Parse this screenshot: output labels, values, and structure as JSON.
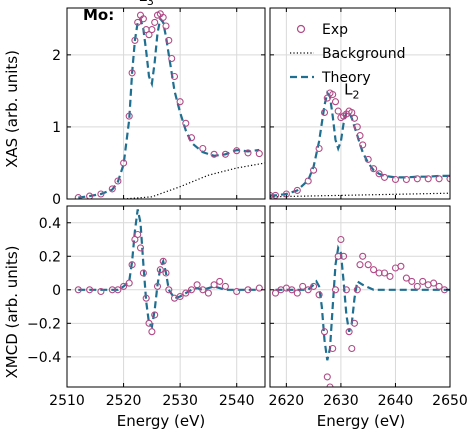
{
  "chart_data": {
    "type": "scatter",
    "element_label": "Mo:",
    "legend": {
      "position": "top-right",
      "entries": [
        {
          "name": "Exp",
          "style": "open-circle",
          "color": "#b04a86"
        },
        {
          "name": "Background",
          "style": "dotted",
          "color": "#000000"
        },
        {
          "name": "Theory",
          "style": "dashed",
          "color": "#1f6f91"
        }
      ]
    },
    "xlabel": "Energy (eV)",
    "grid": true,
    "panels": [
      {
        "id": "xas_l3",
        "ylabel": "XAS (arb. units)",
        "xlim": [
          2510,
          2545
        ],
        "ylim": [
          0,
          2.65
        ],
        "yticks": [
          0,
          1,
          2
        ],
        "xticks": [
          2510,
          2520,
          2530,
          2540
        ],
        "edge_label": {
          "text": "L",
          "sub": "3",
          "x": 2524,
          "y": 2.75
        },
        "exp": {
          "x": [
            2512,
            2514,
            2516,
            2518,
            2519,
            2520,
            2521,
            2521.5,
            2522,
            2522.5,
            2523,
            2523.5,
            2524,
            2524.5,
            2525,
            2525.5,
            2526,
            2526.5,
            2527,
            2527.5,
            2528,
            2528.5,
            2529,
            2530,
            2531,
            2532,
            2534,
            2536,
            2538,
            2540,
            2542,
            2544
          ],
          "y": [
            0.02,
            0.04,
            0.07,
            0.14,
            0.25,
            0.5,
            1.15,
            1.75,
            2.2,
            2.45,
            2.55,
            2.5,
            2.35,
            2.28,
            2.35,
            2.45,
            2.55,
            2.57,
            2.52,
            2.4,
            2.2,
            1.95,
            1.7,
            1.35,
            1.05,
            0.85,
            0.7,
            0.62,
            0.62,
            0.67,
            0.64,
            0.63
          ]
        },
        "theory": {
          "x": [
            2512,
            2514,
            2516,
            2518,
            2519,
            2520,
            2521,
            2521.5,
            2522,
            2522.5,
            2523,
            2523.5,
            2524,
            2524.5,
            2525,
            2525.5,
            2526,
            2526.5,
            2527,
            2527.5,
            2528,
            2528.5,
            2529,
            2530,
            2531,
            2532,
            2534,
            2536,
            2538,
            2540,
            2542,
            2544
          ],
          "y": [
            0.02,
            0.04,
            0.07,
            0.13,
            0.24,
            0.48,
            1.1,
            1.75,
            2.2,
            2.45,
            2.5,
            2.35,
            2.05,
            1.7,
            1.6,
            1.9,
            2.3,
            2.5,
            2.45,
            2.25,
            2.0,
            1.75,
            1.5,
            1.2,
            0.95,
            0.78,
            0.65,
            0.6,
            0.62,
            0.68,
            0.66,
            0.68
          ]
        },
        "background": {
          "x": [
            2520,
            2525,
            2530,
            2535,
            2540,
            2545
          ],
          "y": [
            0.0,
            0.03,
            0.17,
            0.33,
            0.43,
            0.5
          ]
        }
      },
      {
        "id": "xas_l2",
        "xlim": [
          2617,
          2650
        ],
        "ylim": [
          0,
          2.65
        ],
        "yticks": [
          0,
          1,
          2
        ],
        "xticks": [
          2620,
          2630,
          2640,
          2650
        ],
        "edge_label": {
          "text": "L",
          "sub": "2",
          "x": 2632,
          "y": 1.45
        },
        "exp": {
          "x": [
            2617,
            2618,
            2620,
            2622,
            2624,
            2625,
            2626,
            2627,
            2627.5,
            2628,
            2628.5,
            2629,
            2629.5,
            2630,
            2630.5,
            2631,
            2631.5,
            2632,
            2632.5,
            2633,
            2633.5,
            2634,
            2635,
            2636,
            2637,
            2638,
            2640,
            2642,
            2644,
            2646,
            2648,
            2650
          ],
          "y": [
            0.05,
            0.05,
            0.07,
            0.12,
            0.25,
            0.4,
            0.7,
            1.2,
            1.4,
            1.47,
            1.45,
            1.35,
            1.22,
            1.13,
            1.15,
            1.18,
            1.22,
            1.2,
            1.12,
            1.0,
            0.88,
            0.75,
            0.55,
            0.42,
            0.35,
            0.3,
            0.27,
            0.27,
            0.28,
            0.28,
            0.28,
            0.28
          ]
        },
        "theory": {
          "x": [
            2617,
            2618,
            2620,
            2622,
            2624,
            2625,
            2626,
            2627,
            2627.5,
            2628,
            2628.5,
            2629,
            2629.5,
            2630,
            2630.5,
            2631,
            2631.5,
            2632,
            2632.5,
            2633,
            2633.5,
            2634,
            2635,
            2636,
            2637,
            2638,
            2640,
            2642,
            2644,
            2646,
            2648,
            2650
          ],
          "y": [
            0.05,
            0.05,
            0.07,
            0.12,
            0.26,
            0.45,
            0.8,
            1.3,
            1.47,
            1.42,
            1.15,
            0.82,
            0.7,
            0.8,
            1.05,
            1.2,
            1.2,
            1.12,
            1.0,
            0.88,
            0.76,
            0.65,
            0.5,
            0.4,
            0.35,
            0.32,
            0.3,
            0.3,
            0.31,
            0.31,
            0.32,
            0.32
          ]
        },
        "background": {
          "x": [
            2617,
            2650
          ],
          "y": [
            0.03,
            0.08
          ]
        }
      },
      {
        "id": "xmcd_l3",
        "ylabel": "XMCD (arb. units)",
        "xlim": [
          2510,
          2545
        ],
        "ylim": [
          -0.58,
          0.5
        ],
        "yticks": [
          -0.4,
          -0.2,
          0,
          0.2,
          0.4
        ],
        "xticks": [
          2510,
          2520,
          2530,
          2540
        ],
        "exp": {
          "x": [
            2512,
            2514,
            2516,
            2518,
            2519,
            2520,
            2521,
            2521.5,
            2522,
            2522.5,
            2523,
            2523.5,
            2524,
            2524.5,
            2525,
            2525.5,
            2526,
            2526.5,
            2527,
            2527.5,
            2528,
            2529,
            2530,
            2531,
            2532,
            2533,
            2534,
            2535,
            2536,
            2537,
            2538,
            2540,
            2542,
            2544
          ],
          "y": [
            0.0,
            0.0,
            -0.01,
            0.0,
            0.0,
            0.02,
            0.04,
            0.15,
            0.3,
            0.33,
            0.25,
            0.1,
            -0.05,
            -0.2,
            -0.25,
            -0.15,
            0.02,
            0.12,
            0.17,
            0.1,
            0.0,
            -0.05,
            -0.04,
            -0.02,
            0.0,
            0.03,
            0.0,
            -0.02,
            0.03,
            0.05,
            0.02,
            -0.01,
            0.0,
            0.01
          ]
        },
        "theory": {
          "x": [
            2512,
            2514,
            2516,
            2518,
            2519,
            2520,
            2521,
            2521.5,
            2522,
            2522.5,
            2523,
            2523.5,
            2524,
            2524.5,
            2525,
            2525.5,
            2526,
            2526.5,
            2527,
            2527.5,
            2528,
            2529,
            2530,
            2531,
            2532,
            2533,
            2534,
            2536,
            2538,
            2540,
            2542,
            2544
          ],
          "y": [
            0.0,
            0.0,
            0.0,
            0.0,
            0.0,
            0.02,
            0.05,
            0.17,
            0.35,
            0.48,
            0.4,
            0.15,
            -0.07,
            -0.2,
            -0.22,
            -0.12,
            0.03,
            0.13,
            0.17,
            0.1,
            0.0,
            -0.05,
            -0.04,
            -0.02,
            0.0,
            0.01,
            0.0,
            0.02,
            0.0,
            0.0,
            0.0,
            0.0
          ]
        }
      },
      {
        "id": "xmcd_l2",
        "xlim": [
          2617,
          2650
        ],
        "ylim": [
          -0.58,
          0.5
        ],
        "yticks": [
          -0.4,
          -0.2,
          0,
          0.2,
          0.4
        ],
        "xticks": [
          2620,
          2630,
          2640,
          2650
        ],
        "exp": {
          "x": [
            2618,
            2619,
            2620,
            2621,
            2622,
            2623,
            2624,
            2625,
            2626,
            2627,
            2627.5,
            2628,
            2628.5,
            2629,
            2629.5,
            2630,
            2630.5,
            2631,
            2631.5,
            2632,
            2632.5,
            2633,
            2633.5,
            2634,
            2635,
            2636,
            2637,
            2638,
            2639,
            2640,
            2641,
            2642,
            2643,
            2644,
            2645,
            2646,
            2647,
            2648,
            2649
          ],
          "y": [
            -0.02,
            0.0,
            0.01,
            0.0,
            -0.02,
            0.02,
            0.0,
            0.02,
            -0.03,
            -0.25,
            -0.52,
            -0.58,
            -0.35,
            0.0,
            0.2,
            0.3,
            0.2,
            0.0,
            -0.25,
            -0.35,
            -0.2,
            0.0,
            0.15,
            0.2,
            0.15,
            0.12,
            0.1,
            0.1,
            0.08,
            0.13,
            0.14,
            0.07,
            0.05,
            0.02,
            0.05,
            0.03,
            0.04,
            0.02,
            0.0
          ]
        },
        "theory": {
          "x": [
            2618,
            2620,
            2622,
            2624,
            2625,
            2625.5,
            2626,
            2626.5,
            2627,
            2627.5,
            2628,
            2628.5,
            2629,
            2629.5,
            2630,
            2630.5,
            2631,
            2631.5,
            2632,
            2632.5,
            2633,
            2634,
            2636,
            2638,
            2640,
            2645,
            2650
          ],
          "y": [
            0.0,
            0.0,
            0.0,
            0.0,
            0.03,
            0.05,
            0.02,
            -0.1,
            -0.3,
            -0.42,
            -0.35,
            -0.1,
            0.15,
            0.25,
            0.22,
            0.05,
            -0.15,
            -0.25,
            -0.2,
            -0.05,
            0.05,
            0.03,
            0.0,
            0.0,
            0.0,
            0.0,
            0.0
          ]
        }
      }
    ]
  }
}
